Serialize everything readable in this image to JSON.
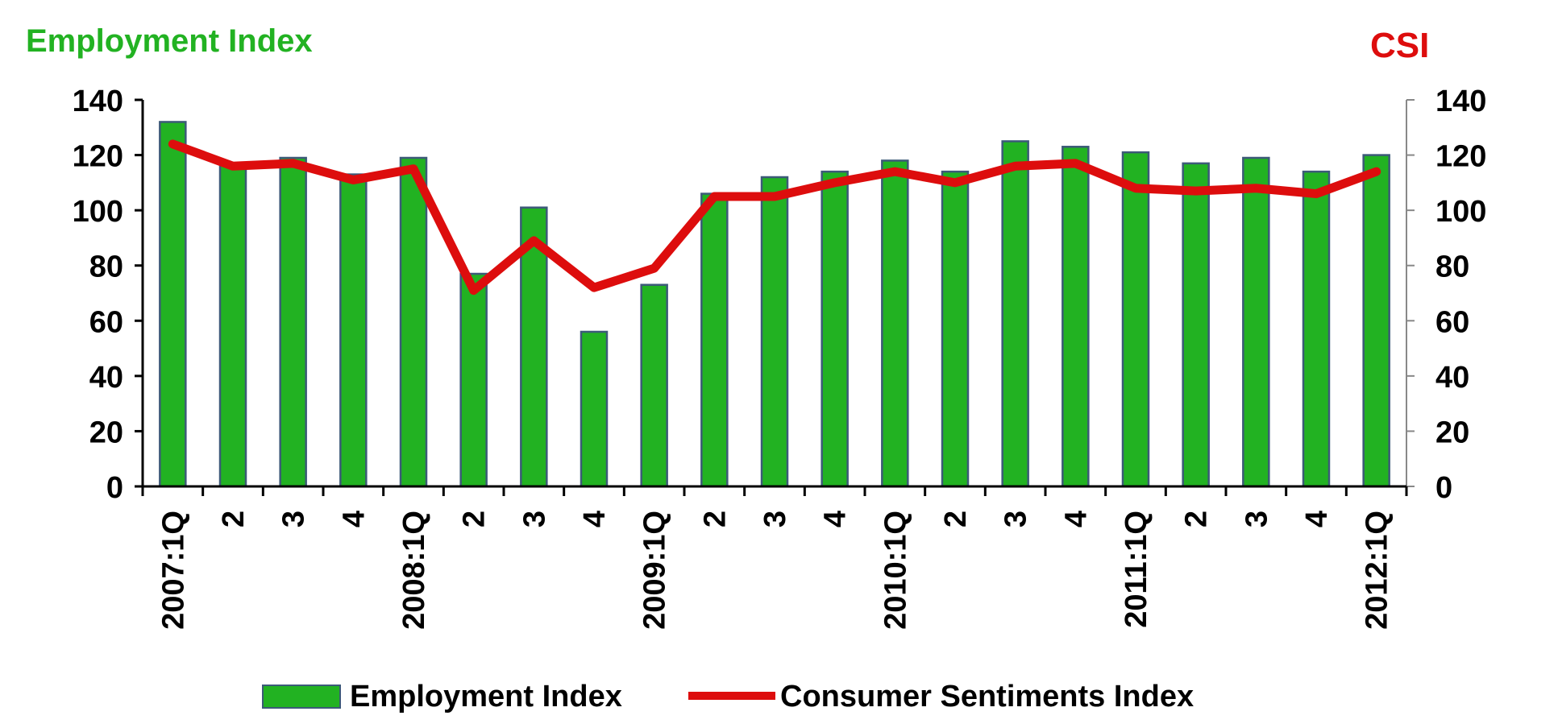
{
  "chart_data": {
    "type": "bar+line",
    "left_axis_title": "Employment Index",
    "right_axis_title": "CSI",
    "left_ylim": [
      0,
      140
    ],
    "right_ylim": [
      0,
      140
    ],
    "y_ticks": [
      "0",
      "20",
      "40",
      "60",
      "80",
      "100",
      "120",
      "140"
    ],
    "categories": [
      "2007:1Q",
      "2",
      "3",
      "4",
      "2008:1Q",
      "2",
      "3",
      "4",
      "2009:1Q",
      "2",
      "3",
      "4",
      "2010:1Q",
      "2",
      "3",
      "4",
      "2011:1Q",
      "2",
      "3",
      "4",
      "2012:1Q"
    ],
    "series": [
      {
        "name": "Employment Index",
        "kind": "bar",
        "axis": "left",
        "values": [
          132,
          117,
          119,
          113,
          119,
          77,
          101,
          56,
          73,
          106,
          112,
          114,
          118,
          114,
          125,
          123,
          121,
          117,
          119,
          114,
          120
        ]
      },
      {
        "name": "Consumer Sentiments Index",
        "kind": "line",
        "axis": "right",
        "values": [
          124,
          116,
          117,
          111,
          115,
          71,
          89,
          72,
          79,
          105,
          105,
          110,
          114,
          110,
          116,
          117,
          108,
          107,
          108,
          106,
          114
        ]
      }
    ],
    "colors": {
      "bar_fill": "#22b222",
      "bar_edge": "#3c5a78",
      "line": "#dd0d0d",
      "left_title": "#22b222",
      "right_title": "#dd0d0d",
      "axis": "#000000"
    },
    "legend": {
      "position": "bottom",
      "entries": [
        "Employment Index",
        "Consumer Sentiments Index"
      ]
    }
  }
}
